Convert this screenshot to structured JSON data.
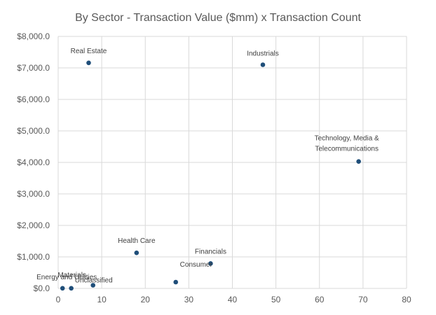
{
  "chart_data": {
    "type": "scatter",
    "title": "By Sector - Transaction Value ($mm) x Transaction Count",
    "xlabel": "",
    "ylabel": "",
    "xlim": [
      0,
      80
    ],
    "ylim": [
      0,
      8000
    ],
    "x_ticks": [
      0,
      10,
      20,
      30,
      40,
      50,
      60,
      70,
      80
    ],
    "y_ticks": [
      0,
      1000,
      2000,
      3000,
      4000,
      5000,
      6000,
      7000,
      8000
    ],
    "x_tick_labels": [
      "0",
      "10",
      "20",
      "30",
      "40",
      "50",
      "60",
      "70",
      "80"
    ],
    "y_tick_labels": [
      "$0.0",
      "$1,000.0",
      "$2,000.0",
      "$3,000.0",
      "$4,000.0",
      "$5,000.0",
      "$6,000.0",
      "$7,000.0",
      "$8,000.0"
    ],
    "grid": true,
    "legend": "none",
    "marker_color": "#1F4E79",
    "points": [
      {
        "name": "Real Estate",
        "label_lines": [
          "Real Estate"
        ],
        "x": 7,
        "y": 7160
      },
      {
        "name": "Industrials",
        "label_lines": [
          "Industrials"
        ],
        "x": 47,
        "y": 7100
      },
      {
        "name": "Technology, Media & Telecommunications",
        "label_lines": [
          "Technology, Media &",
          "Telecommunications"
        ],
        "x": 69,
        "y": 4030
      },
      {
        "name": "Health Care",
        "label_lines": [
          "Health Care"
        ],
        "x": 18,
        "y": 1130
      },
      {
        "name": "Financials",
        "label_lines": [
          "Financials"
        ],
        "x": 35,
        "y": 790
      },
      {
        "name": "Consumer",
        "label_lines": [
          "Consumer"
        ],
        "x": 27,
        "y": 200
      },
      {
        "name": "Unclassified",
        "label_lines": [
          "Unclassified"
        ],
        "x": 8,
        "y": 100
      },
      {
        "name": "Materials",
        "label_lines": [
          "Materials"
        ],
        "x": 3,
        "y": 5
      },
      {
        "name": "Energy and Utilities",
        "label_lines": [
          "Energy and Utilities"
        ],
        "x": 1,
        "y": 5
      }
    ]
  }
}
